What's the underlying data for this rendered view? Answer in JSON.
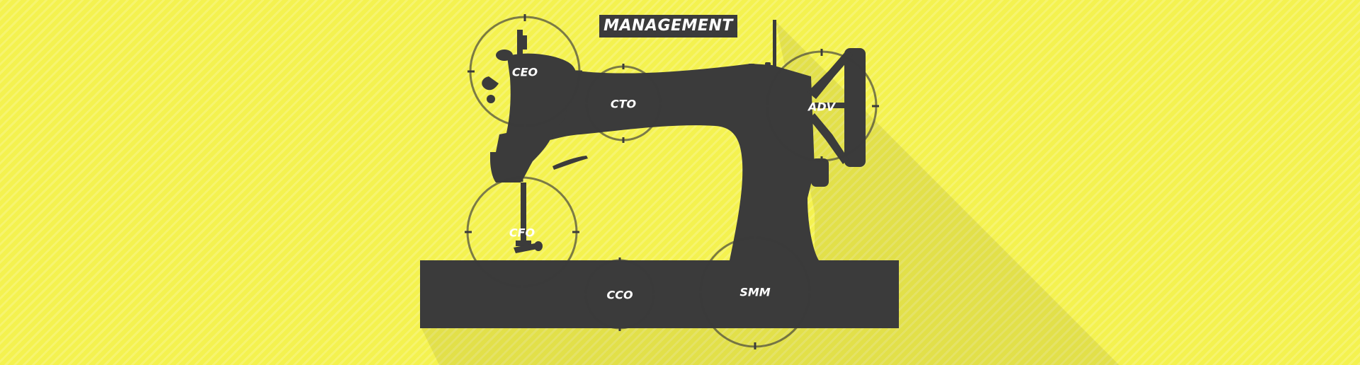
{
  "title": "MANAGEMENT",
  "roles": {
    "ceo": "CEO",
    "cto": "CTO",
    "adv": "ADV",
    "cfo": "CFO",
    "cco": "CCO",
    "smm": "SMM"
  },
  "colors": {
    "background": "#f4f24f",
    "machine": "#3b3b3b",
    "ring": "#555555",
    "label": "#ffffff"
  },
  "icons": {
    "machine": "sewing-machine-icon"
  }
}
